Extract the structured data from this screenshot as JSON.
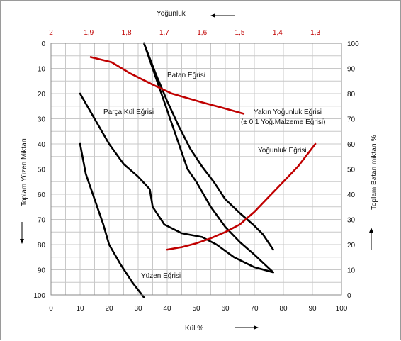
{
  "chart_data": {
    "type": "line",
    "xlabel": "Kül %",
    "top_xlabel": "Yoğunluk",
    "ylabel_left": "Toplam Yüzen Miktarı",
    "ylabel_right": "Toplam Batan miktarı %",
    "x_ticks": [
      "0",
      "10",
      "20",
      "30",
      "40",
      "50",
      "60",
      "70",
      "80",
      "90",
      "100"
    ],
    "y_left_ticks": [
      "0",
      "10",
      "20",
      "30",
      "40",
      "50",
      "60",
      "70",
      "80",
      "90",
      "100"
    ],
    "y_right_ticks": [
      "100",
      "90",
      "80",
      "70",
      "60",
      "50",
      "40",
      "30",
      "20",
      "10",
      "0"
    ],
    "top_ticks": [
      "2",
      "1,9",
      "1,8",
      "1,7",
      "1,6",
      "1,5",
      "1,4",
      "1,3"
    ],
    "xlim": [
      0,
      100
    ],
    "ylim_left": [
      0,
      100
    ],
    "ylim_right": [
      100,
      0
    ],
    "top_lim": [
      2,
      1.3
    ],
    "grid": true,
    "colors": {
      "black_curves": "#000000",
      "density_curves": "#c00000",
      "grid": "#c8c8c8"
    },
    "annotations": {
      "batan": "Batan Eğrisi",
      "parca": "Parça Kül Eğrisi",
      "yakin1": "Yakın Yoğunluk Eğrisi",
      "yakin2": "(± 0,1 Yoğ.Malzeme  Eğrisi)",
      "yogunluk": "Yoğunluk Eğrisi",
      "yuzen": "Yüzen Eğrisi"
    },
    "series": [
      {
        "axis": "left",
        "color": "#000000",
        "values": [
          [
            32,
            0
          ],
          [
            35,
            10
          ],
          [
            38,
            20
          ],
          [
            41,
            30
          ],
          [
            44,
            40
          ],
          [
            47,
            50
          ],
          [
            50,
            55
          ],
          [
            55,
            65
          ],
          [
            60,
            73
          ],
          [
            65,
            79
          ],
          [
            70,
            84
          ],
          [
            76.5,
            91
          ]
        ]
      },
      {
        "axis": "left",
        "color": "#000000",
        "values": [
          [
            10,
            20
          ],
          [
            15,
            30
          ],
          [
            20,
            40
          ],
          [
            25,
            48
          ],
          [
            30,
            53
          ],
          [
            34,
            58
          ],
          [
            35,
            65
          ],
          [
            39,
            72
          ],
          [
            45,
            75.5
          ],
          [
            52,
            77
          ],
          [
            57,
            80
          ],
          [
            63,
            85
          ],
          [
            70,
            89
          ],
          [
            76.5,
            91
          ]
        ]
      },
      {
        "axis": "left",
        "color": "#000000",
        "values": [
          [
            10,
            40
          ],
          [
            12,
            52
          ],
          [
            15,
            62
          ],
          [
            18,
            72
          ],
          [
            20,
            80
          ],
          [
            24,
            88
          ],
          [
            28,
            95
          ],
          [
            32,
            101
          ]
        ]
      },
      {
        "axis": "left",
        "color": "#000000",
        "values": [
          [
            32,
            0
          ],
          [
            36,
            12
          ],
          [
            40,
            23
          ],
          [
            44,
            33
          ],
          [
            48,
            42
          ],
          [
            52,
            49
          ],
          [
            56,
            55
          ],
          [
            60,
            62
          ],
          [
            65,
            67.5
          ],
          [
            70,
            72.5
          ],
          [
            73,
            76
          ],
          [
            76.5,
            82
          ]
        ]
      },
      {
        "axis": "top",
        "color": "#c00000",
        "values": [
          [
            1.895,
            5.5
          ],
          [
            1.84,
            7.5
          ],
          [
            1.79,
            12
          ],
          [
            1.73,
            16.5
          ],
          [
            1.68,
            20
          ],
          [
            1.6,
            23.5
          ],
          [
            1.55,
            25.5
          ],
          [
            1.49,
            28
          ]
        ]
      },
      {
        "axis": "left",
        "color": "#c00000",
        "values": [
          [
            40,
            82
          ],
          [
            45,
            81
          ],
          [
            50,
            79.5
          ],
          [
            55,
            77.5
          ],
          [
            60,
            75
          ],
          [
            65,
            72
          ],
          [
            70,
            67
          ],
          [
            75,
            61
          ],
          [
            80,
            55
          ],
          [
            85,
            49
          ],
          [
            91,
            40
          ]
        ]
      }
    ]
  }
}
